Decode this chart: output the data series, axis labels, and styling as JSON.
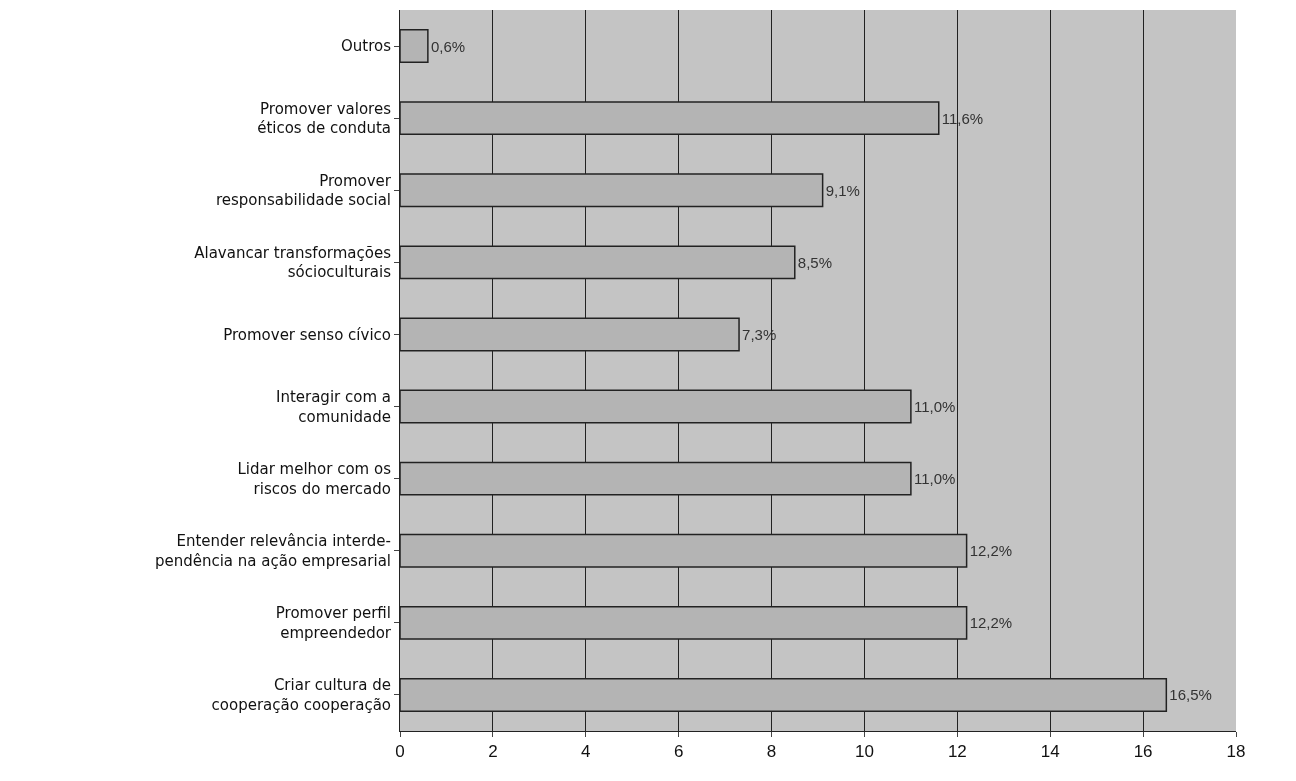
{
  "chart_data": {
    "type": "bar",
    "orientation": "horizontal",
    "categories": [
      "Outros",
      "Promover valores\néticos de conduta",
      "Promover\nresponsabilidade social",
      "Alavancar transformações\nsócioculturais",
      "Promover senso cívico",
      "Interagir com a\ncomunidade",
      "Lidar melhor com os\nriscos do mercado",
      "Entender relevância interde-\npendência na ação empresarial",
      "Promover perfil\nempreendedor",
      "Criar cultura de\ncooperação cooperação"
    ],
    "values": [
      0.6,
      11.6,
      9.1,
      8.5,
      7.3,
      11.0,
      11.0,
      12.2,
      12.2,
      16.5
    ],
    "value_labels": [
      "0,6%",
      "11,6%",
      "9,1%",
      "8,5%",
      "7,3%",
      "11,0%",
      "11,0%",
      "12,2%",
      "12,2%",
      "16,5%"
    ],
    "color": "#b4b4b4",
    "xlim": [
      0,
      18
    ],
    "xticks": [
      0,
      2,
      4,
      6,
      8,
      10,
      12,
      14,
      16,
      18
    ],
    "grid": "x",
    "legend": false
  }
}
